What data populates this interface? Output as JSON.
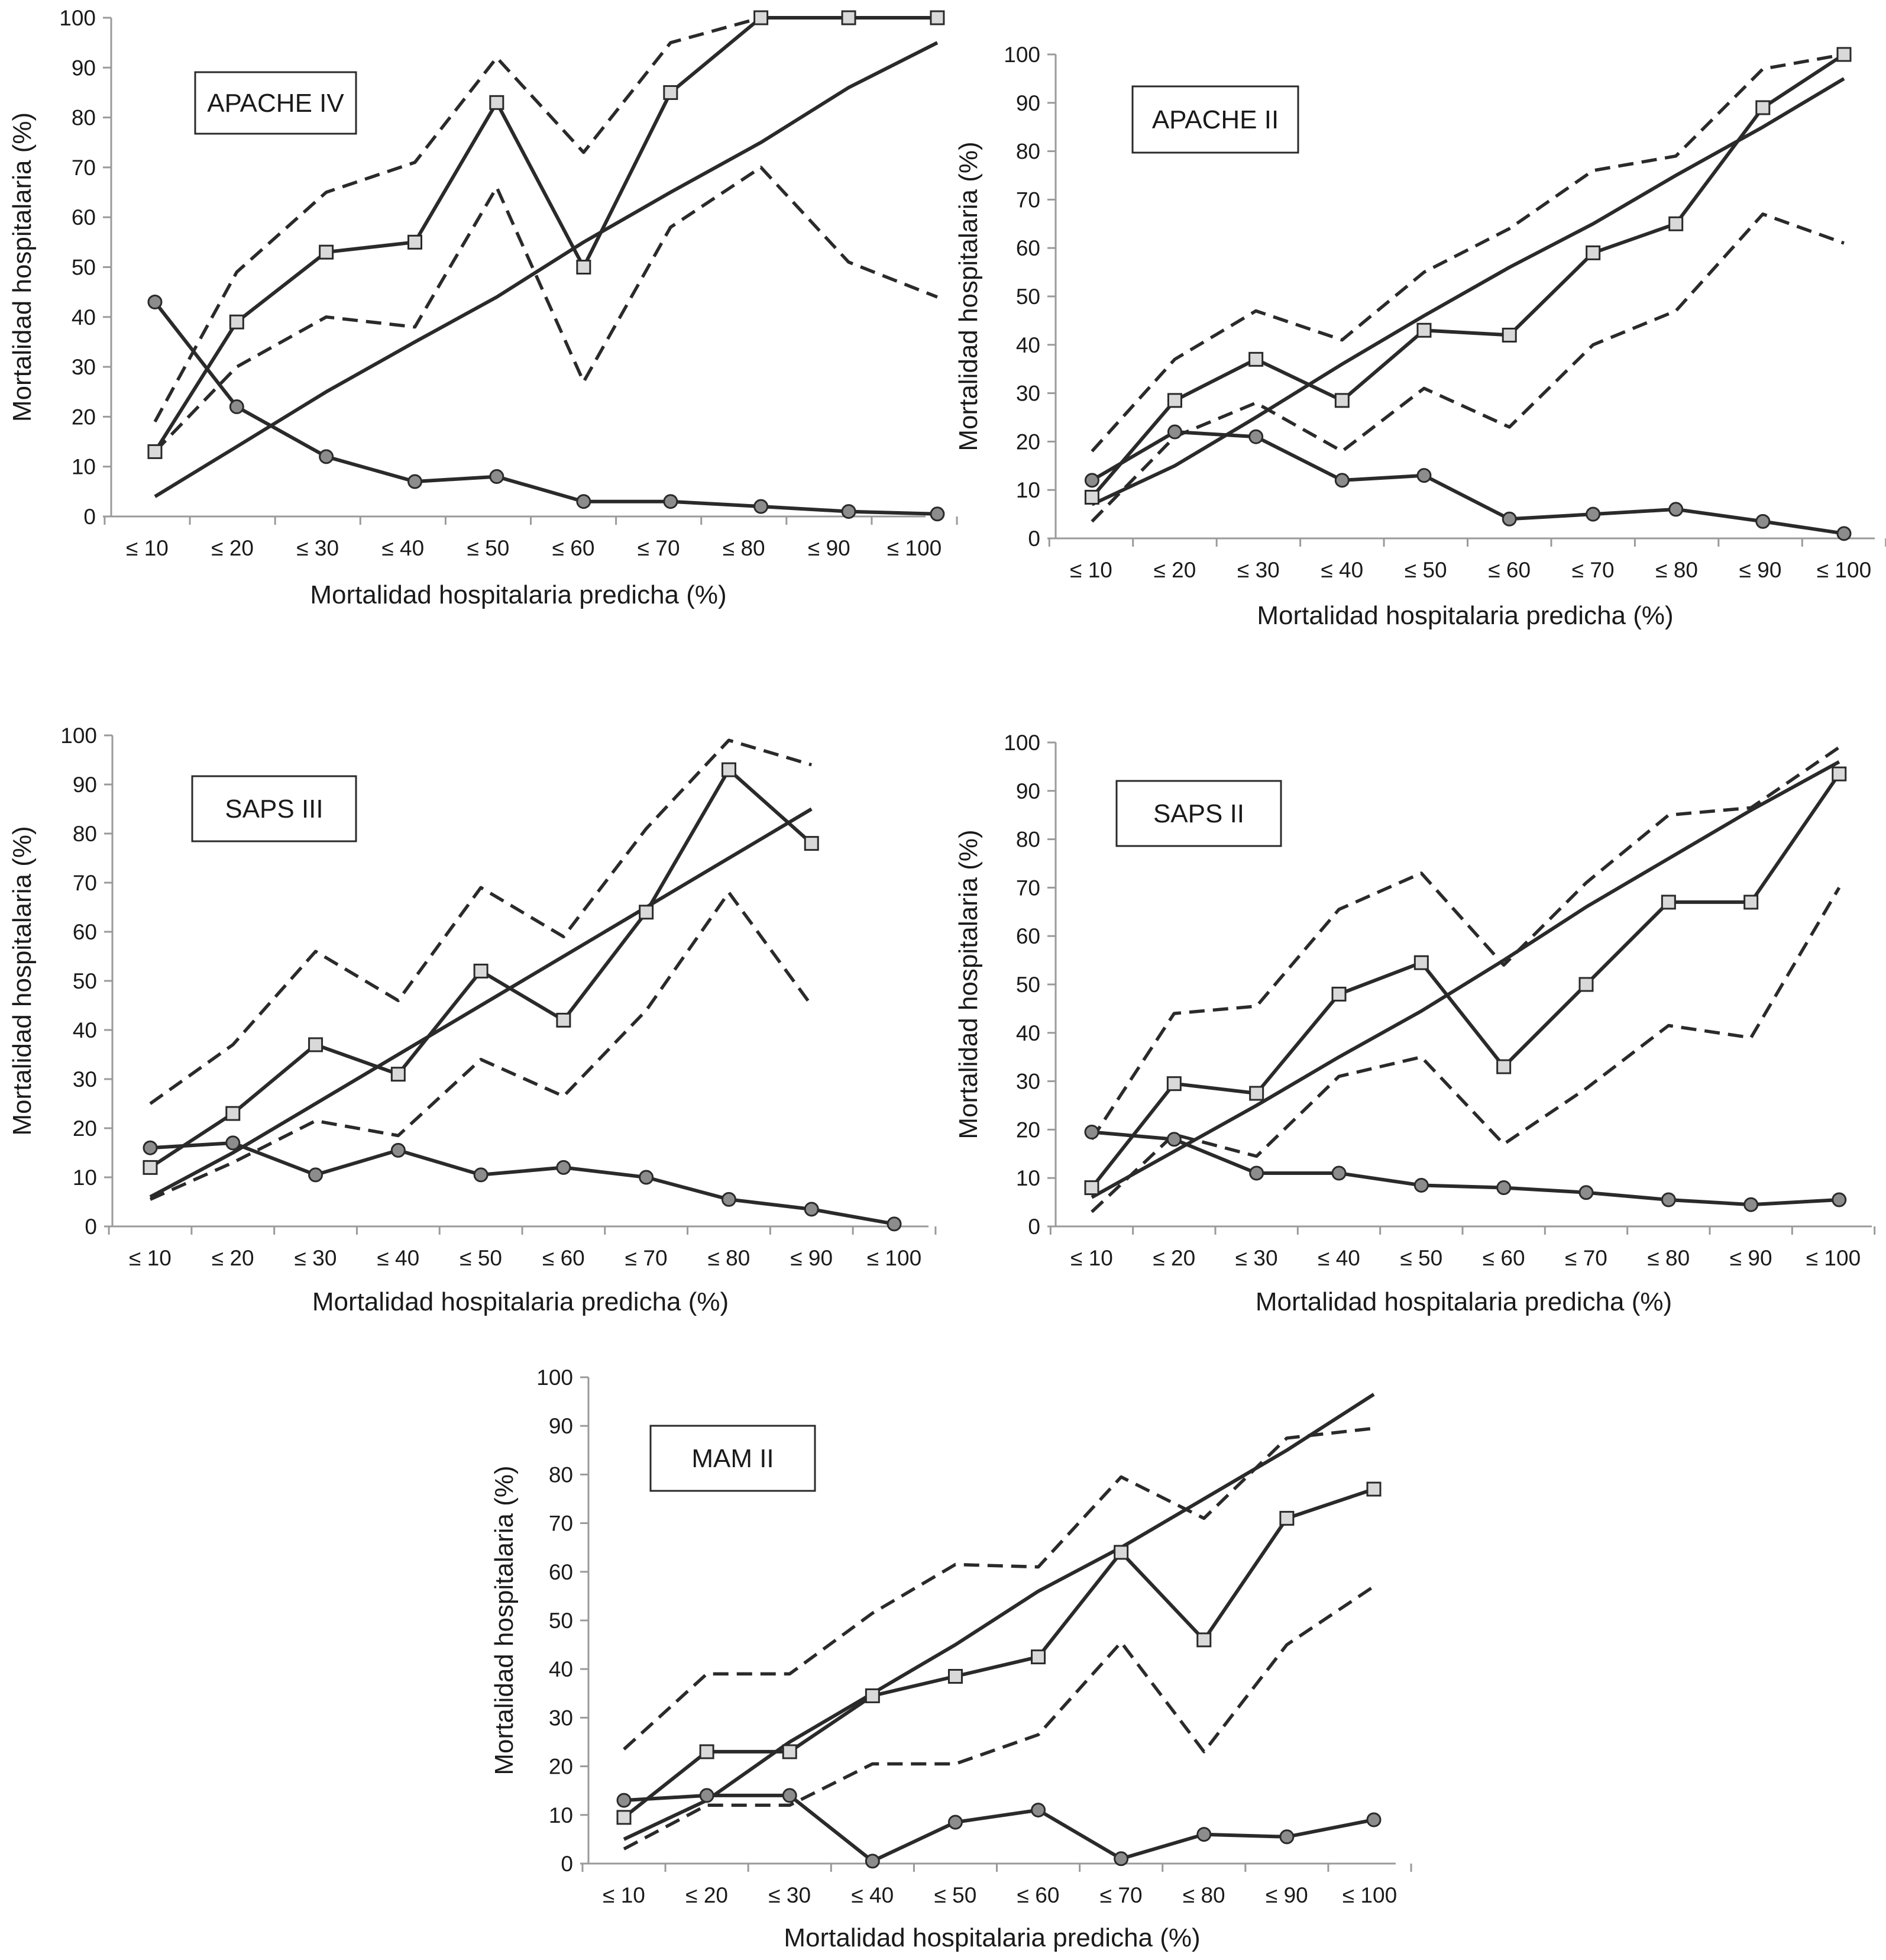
{
  "chart_data": [
    {
      "type": "line",
      "title": "APACHE IV",
      "xlabel": "Mortalidad hospitalaria predicha (%)",
      "ylabel": "Mortalidad hospitalaria (%)",
      "ylim": [
        0,
        100
      ],
      "yticks": [
        0,
        10,
        20,
        30,
        40,
        50,
        60,
        70,
        80,
        90,
        100
      ],
      "categories": [
        "≤ 10",
        "≤ 20",
        "≤ 30",
        "≤ 40",
        "≤ 50",
        "≤ 60",
        "≤ 70",
        "≤ 80",
        "≤ 90",
        "≤ 100"
      ],
      "grid": false,
      "series": [
        {
          "style": "square-marker",
          "x": [
            1.09,
            2.05,
            3.1,
            4.14,
            5.1,
            6.12,
            7.14,
            8.2,
            9.23,
            10.27
          ],
          "values": [
            13,
            39,
            53,
            55,
            83,
            50,
            85,
            100,
            100,
            100
          ]
        },
        {
          "style": "circle-marker",
          "x": [
            1.09,
            2.05,
            3.1,
            4.14,
            5.1,
            6.12,
            7.14,
            8.2,
            9.23,
            10.27
          ],
          "values": [
            43,
            22,
            12,
            7,
            8,
            3,
            3,
            2,
            1,
            0.5
          ]
        },
        {
          "style": "solid",
          "x": [
            1.09,
            2.05,
            3.1,
            4.14,
            5.1,
            6.12,
            7.14,
            8.2,
            9.23,
            10.27
          ],
          "values": [
            4,
            14,
            25,
            35,
            44,
            55,
            65,
            75,
            86,
            95
          ]
        },
        {
          "style": "dashed",
          "x": [
            1.09,
            2.05,
            3.1,
            4.14,
            5.1,
            6.12,
            7.14,
            8.2,
            9.23,
            10.27
          ],
          "values": [
            19,
            49,
            65,
            71,
            92,
            73,
            95,
            100,
            100,
            100
          ]
        },
        {
          "style": "dashed",
          "x": [
            1.09,
            2.05,
            3.1,
            4.14,
            5.1,
            6.12,
            7.14,
            8.2,
            9.23,
            10.27
          ],
          "values": [
            13,
            30,
            40,
            38,
            66,
            27,
            58,
            70,
            51,
            44
          ]
        }
      ]
    },
    {
      "type": "line",
      "title": "APACHE II",
      "xlabel": "Mortalidad hospitalaria predicha (%)",
      "ylabel": "Mortalidad hospitalaria (%)",
      "ylim": [
        0,
        100
      ],
      "yticks": [
        0,
        10,
        20,
        30,
        40,
        50,
        60,
        70,
        80,
        90,
        100
      ],
      "categories": [
        "≤ 10",
        "≤ 20",
        "≤ 30",
        "≤ 40",
        "≤ 50",
        "≤ 60",
        "≤ 70",
        "≤ 80",
        "≤ 90",
        "≤ 100"
      ],
      "grid": false,
      "series": [
        {
          "style": "square-marker",
          "x": [
            1.01,
            2.0,
            2.97,
            4.0,
            4.98,
            6.0,
            7.0,
            7.99,
            9.03,
            10.0
          ],
          "values": [
            8.5,
            28.5,
            37,
            28.5,
            43,
            42,
            59,
            65,
            89,
            100
          ]
        },
        {
          "style": "circle-marker",
          "x": [
            1.01,
            2.0,
            2.97,
            4.0,
            4.98,
            6.0,
            7.0,
            7.99,
            9.03,
            10.0
          ],
          "values": [
            12,
            22,
            21,
            12,
            13,
            4,
            5,
            6,
            3.5,
            1
          ]
        },
        {
          "style": "solid",
          "x": [
            1.01,
            2.0,
            2.97,
            4.0,
            4.98,
            6.0,
            7.0,
            7.99,
            9.03,
            10.0
          ],
          "values": [
            7,
            15,
            25,
            36,
            46,
            56,
            65,
            75,
            85,
            95
          ]
        },
        {
          "style": "dashed",
          "x": [
            1.01,
            2.0,
            2.97,
            4.0,
            4.98,
            6.0,
            7.0,
            7.99,
            9.03,
            10.0
          ],
          "values": [
            18,
            37,
            47,
            41,
            55,
            64,
            76,
            79,
            97,
            100
          ]
        },
        {
          "style": "dashed",
          "x": [
            1.01,
            2.0,
            2.97,
            4.0,
            4.98,
            6.0,
            7.0,
            7.99,
            9.03,
            10.0
          ],
          "values": [
            3.5,
            21,
            28,
            18,
            31,
            23,
            40,
            47,
            67,
            61
          ]
        }
      ]
    },
    {
      "type": "line",
      "title": "SAPS III",
      "xlabel": "Mortalidad hospitalaria predicha (%)",
      "ylabel": "Mortalidad hospitalaria (%)",
      "ylim": [
        0,
        100
      ],
      "yticks": [
        0,
        10,
        20,
        30,
        40,
        50,
        60,
        70,
        80,
        90,
        100
      ],
      "categories": [
        "≤ 10",
        "≤ 20",
        "≤ 30",
        "≤ 40",
        "≤ 50",
        "≤ 60",
        "≤ 70",
        "≤ 80",
        "≤ 90",
        "≤ 100"
      ],
      "grid": false,
      "series": [
        {
          "style": "square-marker",
          "x": [
            1.0,
            2.0,
            3.0,
            4.0,
            5.0,
            6.0,
            7.0,
            8.0,
            9.0
          ],
          "values": [
            12,
            23,
            37,
            31,
            52,
            42,
            64,
            93,
            78
          ]
        },
        {
          "style": "circle-marker",
          "x": [
            1.0,
            2.0,
            3.0,
            4.0,
            5.0,
            6.0,
            7.0,
            8.0,
            9.0,
            10.0
          ],
          "values": [
            16,
            17,
            10.5,
            15.5,
            10.5,
            12,
            10,
            5.5,
            3.5,
            0.5
          ]
        },
        {
          "style": "solid",
          "x": [
            1.0,
            2.0,
            3.0,
            4.0,
            5.0,
            6.0,
            7.0,
            8.0,
            9.0
          ],
          "values": [
            6,
            15,
            25,
            35,
            45,
            55,
            65,
            75,
            85
          ]
        },
        {
          "style": "dashed",
          "x": [
            1.0,
            2.0,
            3.0,
            4.0,
            5.0,
            6.0,
            7.0,
            8.0,
            9.0
          ],
          "values": [
            25,
            37,
            56,
            46,
            69,
            59,
            81,
            99,
            94
          ]
        },
        {
          "style": "dashed",
          "x": [
            1.0,
            2.0,
            3.0,
            4.0,
            5.0,
            6.0,
            7.0,
            8.0,
            9.0
          ],
          "values": [
            5.5,
            13,
            21.5,
            18.5,
            34,
            26.5,
            44,
            68,
            45
          ]
        }
      ]
    },
    {
      "type": "line",
      "title": "SAPS II",
      "xlabel": "Mortalidad hospitalaria predicha (%)",
      "ylabel": "Mortalidad hospitalaria (%)",
      "ylim": [
        0,
        100
      ],
      "yticks": [
        0,
        10,
        20,
        30,
        40,
        50,
        60,
        70,
        80,
        90,
        100
      ],
      "categories": [
        "≤ 10",
        "≤ 20",
        "≤ 30",
        "≤ 40",
        "≤ 50",
        "≤ 60",
        "≤ 70",
        "≤ 80",
        "≤ 90",
        "≤ 100"
      ],
      "grid": false,
      "series": [
        {
          "style": "square-marker",
          "x": [
            1.0,
            2.0,
            3.0,
            4.0,
            5.0,
            6.0,
            7.0,
            8.0,
            9.0,
            10.07
          ],
          "values": [
            8,
            29.5,
            27.5,
            48,
            54.5,
            33,
            50,
            67,
            67,
            93.5
          ]
        },
        {
          "style": "circle-marker",
          "x": [
            1.0,
            2.0,
            3.0,
            4.0,
            5.0,
            6.0,
            7.0,
            8.0,
            9.0,
            10.07
          ],
          "values": [
            19.5,
            18,
            11,
            11,
            8.5,
            8,
            7,
            5.5,
            4.5,
            5.5
          ]
        },
        {
          "style": "solid",
          "x": [
            1.0,
            2.0,
            3.0,
            4.0,
            5.0,
            6.0,
            7.0,
            8.0,
            9.0,
            10.07
          ],
          "values": [
            6,
            15.5,
            25,
            35,
            44.5,
            55,
            66,
            76,
            86,
            96
          ]
        },
        {
          "style": "dashed",
          "x": [
            1.0,
            2.0,
            3.0,
            4.0,
            5.0,
            6.0,
            7.0,
            8.0,
            9.0,
            10.07
          ],
          "values": [
            18,
            44,
            45.5,
            65.5,
            73,
            54,
            71,
            85,
            86.5,
            99
          ]
        },
        {
          "style": "dashed",
          "x": [
            1.0,
            2.0,
            3.0,
            4.0,
            5.0,
            6.0,
            7.0,
            8.0,
            9.0,
            10.07
          ],
          "values": [
            3,
            19,
            14.5,
            31,
            35,
            17,
            28.5,
            41.5,
            39,
            70
          ]
        }
      ]
    },
    {
      "type": "line",
      "title": "MAM II",
      "xlabel": "Mortalidad hospitalaria predicha (%)",
      "ylabel": "Mortalidad hospitalaria (%)",
      "ylim": [
        0,
        100
      ],
      "yticks": [
        0,
        10,
        20,
        30,
        40,
        50,
        60,
        70,
        80,
        90,
        100
      ],
      "categories": [
        "≤ 10",
        "≤ 20",
        "≤ 30",
        "≤ 40",
        "≤ 50",
        "≤ 60",
        "≤ 70",
        "≤ 80",
        "≤ 90",
        "≤ 100"
      ],
      "grid": false,
      "series": [
        {
          "style": "square-marker",
          "x": [
            1.0,
            2.0,
            3.0,
            4.0,
            5.0,
            6.0,
            7.0,
            8.0,
            9.0,
            10.05
          ],
          "values": [
            9.5,
            23,
            23,
            34.5,
            38.5,
            42.5,
            64,
            46,
            71,
            77
          ]
        },
        {
          "style": "circle-marker",
          "x": [
            1.0,
            2.0,
            3.0,
            4.0,
            5.0,
            6.0,
            7.0,
            8.0,
            9.0,
            10.05
          ],
          "values": [
            13,
            14,
            14,
            0.5,
            8.5,
            11,
            1,
            6,
            5.5,
            9
          ]
        },
        {
          "style": "solid",
          "x": [
            1.0,
            2.0,
            3.0,
            4.0,
            5.0,
            6.0,
            7.0,
            8.0,
            9.0,
            10.05
          ],
          "values": [
            5,
            13,
            25,
            35,
            45,
            56,
            65,
            75,
            85,
            96.5
          ]
        },
        {
          "style": "dashed",
          "x": [
            1.0,
            2.0,
            3.0,
            4.0,
            5.0,
            6.0,
            7.0,
            8.0,
            9.0,
            10.05
          ],
          "values": [
            23.5,
            39,
            39,
            51.5,
            61.5,
            61,
            79.5,
            71,
            87.5,
            89.5
          ]
        },
        {
          "style": "dashed",
          "x": [
            1.0,
            2.0,
            3.0,
            4.0,
            5.0,
            6.0,
            7.0,
            8.0,
            9.0,
            10.05
          ],
          "values": [
            3,
            12,
            12,
            20.5,
            20.5,
            26.5,
            45.5,
            23,
            45,
            57
          ]
        }
      ]
    }
  ]
}
